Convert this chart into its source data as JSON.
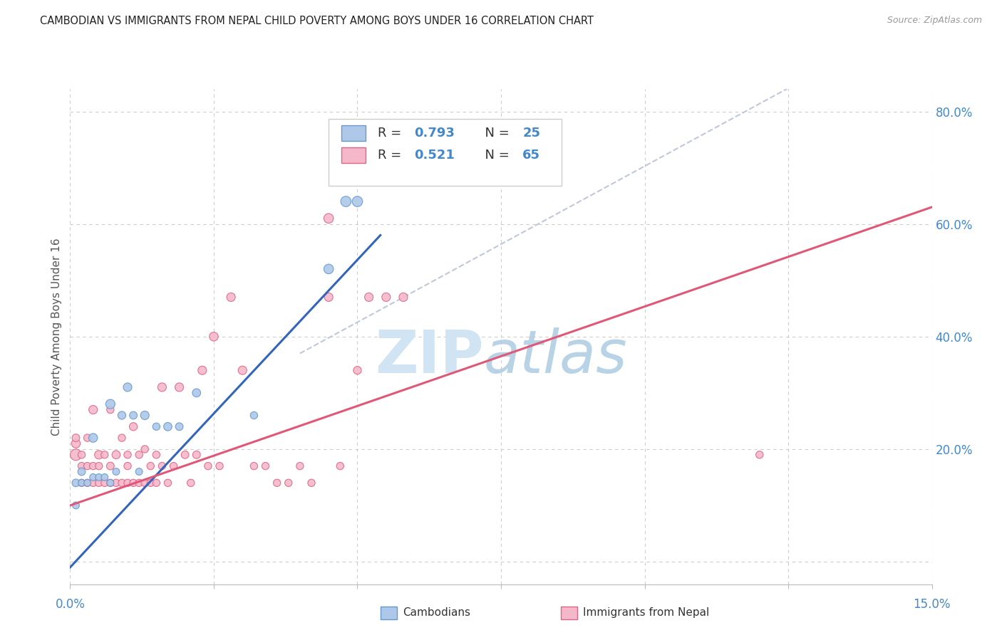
{
  "title": "CAMBODIAN VS IMMIGRANTS FROM NEPAL CHILD POVERTY AMONG BOYS UNDER 16 CORRELATION CHART",
  "source": "Source: ZipAtlas.com",
  "ylabel": "Child Poverty Among Boys Under 16",
  "xlim": [
    0.0,
    0.15
  ],
  "ylim": [
    -0.04,
    0.84
  ],
  "ytick_positions": [
    0.0,
    0.2,
    0.4,
    0.6,
    0.8
  ],
  "ytick_right_labels": [
    "",
    "20.0%",
    "40.0%",
    "60.0%",
    "80.0%"
  ],
  "xtick_positions": [
    0.0,
    0.025,
    0.05,
    0.075,
    0.1,
    0.125,
    0.15
  ],
  "cambodian_color": "#adc8e8",
  "cambodian_edge": "#6699cc",
  "cambodian_line_color": "#3366bb",
  "nepal_color": "#f5b8ca",
  "nepal_edge": "#dd6688",
  "nepal_line_color": "#e05878",
  "dashed_line_color": "#c0c8d8",
  "background_color": "#ffffff",
  "grid_color": "#cccccc",
  "title_color": "#222222",
  "axis_label_color": "#555555",
  "tick_label_color": "#4488cc",
  "watermark_zip_color": "#d0e4f4",
  "watermark_atlas_color": "#a8c8e0",
  "cambodian_x": [
    0.001,
    0.001,
    0.002,
    0.002,
    0.003,
    0.004,
    0.004,
    0.005,
    0.006,
    0.007,
    0.007,
    0.008,
    0.009,
    0.01,
    0.011,
    0.012,
    0.013,
    0.015,
    0.017,
    0.019,
    0.022,
    0.032,
    0.045,
    0.048,
    0.05
  ],
  "cambodian_y": [
    0.1,
    0.14,
    0.14,
    0.16,
    0.14,
    0.15,
    0.22,
    0.15,
    0.15,
    0.14,
    0.28,
    0.16,
    0.26,
    0.31,
    0.26,
    0.16,
    0.26,
    0.24,
    0.24,
    0.24,
    0.3,
    0.26,
    0.52,
    0.64,
    0.64
  ],
  "cambodian_size": [
    50,
    60,
    50,
    60,
    50,
    50,
    80,
    50,
    50,
    50,
    90,
    50,
    65,
    75,
    60,
    50,
    75,
    55,
    70,
    60,
    70,
    55,
    95,
    110,
    110
  ],
  "nepal_x": [
    0.001,
    0.001,
    0.001,
    0.002,
    0.002,
    0.002,
    0.003,
    0.003,
    0.003,
    0.004,
    0.004,
    0.004,
    0.005,
    0.005,
    0.005,
    0.006,
    0.006,
    0.007,
    0.007,
    0.007,
    0.008,
    0.008,
    0.009,
    0.009,
    0.01,
    0.01,
    0.01,
    0.011,
    0.011,
    0.012,
    0.012,
    0.013,
    0.013,
    0.014,
    0.014,
    0.015,
    0.015,
    0.016,
    0.016,
    0.017,
    0.018,
    0.019,
    0.02,
    0.021,
    0.022,
    0.023,
    0.024,
    0.025,
    0.026,
    0.028,
    0.03,
    0.032,
    0.034,
    0.036,
    0.038,
    0.04,
    0.042,
    0.045,
    0.047,
    0.05,
    0.052,
    0.055,
    0.058,
    0.12,
    0.045
  ],
  "nepal_y": [
    0.19,
    0.21,
    0.22,
    0.14,
    0.17,
    0.19,
    0.14,
    0.17,
    0.22,
    0.14,
    0.17,
    0.27,
    0.14,
    0.17,
    0.19,
    0.14,
    0.19,
    0.14,
    0.17,
    0.27,
    0.14,
    0.19,
    0.14,
    0.22,
    0.14,
    0.17,
    0.19,
    0.14,
    0.24,
    0.14,
    0.19,
    0.14,
    0.2,
    0.14,
    0.17,
    0.14,
    0.19,
    0.17,
    0.31,
    0.14,
    0.17,
    0.31,
    0.19,
    0.14,
    0.19,
    0.34,
    0.17,
    0.4,
    0.17,
    0.47,
    0.34,
    0.17,
    0.17,
    0.14,
    0.14,
    0.17,
    0.14,
    0.47,
    0.17,
    0.34,
    0.47,
    0.47,
    0.47,
    0.19,
    0.61
  ],
  "nepal_size": [
    130,
    80,
    60,
    55,
    55,
    55,
    55,
    55,
    55,
    55,
    55,
    75,
    55,
    55,
    75,
    55,
    55,
    55,
    60,
    55,
    55,
    70,
    55,
    55,
    55,
    55,
    55,
    55,
    65,
    55,
    55,
    55,
    55,
    55,
    55,
    55,
    55,
    55,
    75,
    55,
    55,
    75,
    60,
    55,
    60,
    75,
    55,
    80,
    55,
    75,
    75,
    55,
    55,
    55,
    55,
    55,
    55,
    75,
    55,
    65,
    75,
    75,
    75,
    55,
    95
  ],
  "cambodian_line_x": [
    0.0,
    0.054
  ],
  "cambodian_line_y": [
    -0.01,
    0.58
  ],
  "nepal_line_x": [
    0.0,
    0.15
  ],
  "nepal_line_y": [
    0.1,
    0.63
  ],
  "dashed_line_x": [
    0.04,
    0.15
  ],
  "dashed_line_y": [
    0.37,
    0.98
  ]
}
